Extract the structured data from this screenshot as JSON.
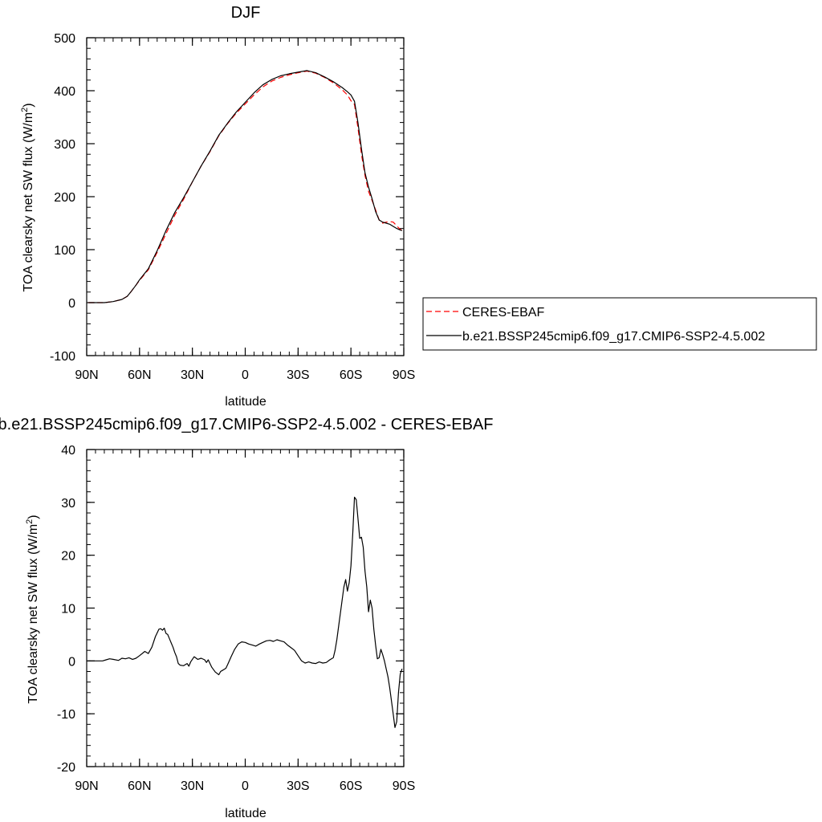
{
  "chart_data": [
    {
      "type": "line",
      "title": "DJF",
      "xlabel": "latitude",
      "ylabel": "TOA clearsky net SW flux (W/m",
      "ylabel_sup": "2",
      "ylabel_tail": ")",
      "xlim": [
        90,
        -90
      ],
      "ylim": [
        -100,
        500
      ],
      "xticks": [
        90,
        60,
        30,
        0,
        -30,
        -60,
        -90
      ],
      "xtick_labels": [
        "90N",
        "60N",
        "30N",
        "0",
        "30S",
        "60S",
        "90S"
      ],
      "yticks": [
        -100,
        0,
        100,
        200,
        300,
        400,
        500
      ],
      "ytick_labels": [
        "-100",
        "0",
        "100",
        "200",
        "300",
        "400",
        "500"
      ],
      "legend": {
        "position": "right",
        "entries": [
          "CERES-EBAF",
          "b.e21.BSSP245cmip6.f09_g17.CMIP6-SSP2-4.5.002"
        ]
      },
      "series": [
        {
          "name": "CERES-EBAF",
          "style": "dashed",
          "color": "#ff0000",
          "x": [
            89,
            85,
            80,
            75,
            70,
            67,
            65,
            62,
            60,
            55,
            50,
            45,
            40,
            35,
            30,
            25,
            20,
            15,
            10,
            5,
            0,
            -5,
            -10,
            -15,
            -20,
            -25,
            -30,
            -35,
            -40,
            -45,
            -50,
            -55,
            -58,
            -60,
            -62,
            -64,
            -66,
            -68,
            -70,
            -72,
            -74,
            -76,
            -78,
            -80,
            -82,
            -84,
            -86,
            -88,
            -89
          ],
          "y": [
            0,
            0,
            0,
            2,
            6,
            12,
            20,
            33,
            42,
            62,
            95,
            130,
            165,
            195,
            228,
            258,
            285,
            315,
            338,
            358,
            375,
            392,
            407,
            418,
            425,
            430,
            434,
            437,
            433,
            425,
            415,
            402,
            392,
            381,
            374,
            330,
            280,
            240,
            210,
            193,
            175,
            156,
            150,
            152,
            153,
            152,
            145,
            138,
            137
          ]
        },
        {
          "name": "b.e21.BSSP245cmip6.f09_g17.CMIP6-SSP2-4.5.002",
          "style": "solid",
          "color": "#000000",
          "x": [
            89,
            85,
            80,
            75,
            70,
            67,
            65,
            62,
            60,
            55,
            50,
            45,
            40,
            35,
            30,
            25,
            20,
            15,
            10,
            5,
            0,
            -5,
            -10,
            -15,
            -20,
            -25,
            -30,
            -35,
            -40,
            -45,
            -50,
            -55,
            -58,
            -60,
            -62,
            -64,
            -66,
            -68,
            -70,
            -72,
            -74,
            -76,
            -78,
            -80,
            -82,
            -84,
            -86,
            -88,
            -89
          ],
          "y": [
            0,
            0,
            0,
            2,
            6,
            12,
            20,
            33,
            43,
            64,
            98,
            136,
            170,
            198,
            228,
            258,
            286,
            316,
            339,
            360,
            378,
            396,
            411,
            421,
            428,
            432,
            435,
            438,
            434,
            426,
            417,
            406,
            398,
            392,
            380,
            340,
            290,
            245,
            218,
            196,
            172,
            156,
            152,
            150,
            148,
            144,
            140,
            137,
            136
          ]
        }
      ]
    },
    {
      "type": "line",
      "title": "b.e21.BSSP245cmip6.f09_g17.CMIP6-SSP2-4.5.002 - CERES-EBAF",
      "xlabel": "latitude",
      "ylabel": "TOA clearsky net SW flux (W/m",
      "ylabel_sup": "2",
      "ylabel_tail": ")",
      "xlim": [
        90,
        -90
      ],
      "ylim": [
        -20,
        40
      ],
      "xticks": [
        90,
        60,
        30,
        0,
        -30,
        -60,
        -90
      ],
      "xtick_labels": [
        "90N",
        "60N",
        "30N",
        "0",
        "30S",
        "60S",
        "90S"
      ],
      "yticks": [
        -20,
        -10,
        0,
        10,
        20,
        30,
        40
      ],
      "ytick_labels": [
        "-20",
        "-10",
        "0",
        "10",
        "20",
        "30",
        "40"
      ],
      "series": [
        {
          "style": "solid",
          "color": "#000000",
          "x": [
            89,
            85,
            81,
            79,
            77,
            75,
            72,
            70,
            68,
            66,
            64,
            62,
            60,
            57,
            55,
            53,
            51,
            49,
            48,
            47,
            46,
            45,
            44,
            43,
            42,
            41,
            40,
            39,
            38,
            37,
            35,
            33,
            32,
            31,
            29,
            27,
            25,
            23,
            22,
            21,
            20,
            19,
            17,
            15,
            14,
            13,
            12,
            11,
            10,
            8,
            6,
            4,
            2,
            0,
            -2,
            -4,
            -6,
            -8,
            -10,
            -12,
            -14,
            -16,
            -18,
            -20,
            -22,
            -24,
            -26,
            -28,
            -30,
            -32,
            -34,
            -36,
            -38,
            -40,
            -42,
            -44,
            -46,
            -48,
            -50,
            -51,
            -52,
            -53,
            -54,
            -55,
            -56,
            -57,
            -58,
            -59,
            -60,
            -61,
            -62,
            -63,
            -64,
            -65,
            -66,
            -67,
            -68,
            -69,
            -70,
            -71,
            -72,
            -73,
            -74,
            -75,
            -76,
            -77,
            -78,
            -79,
            -80,
            -81,
            -82,
            -83,
            -84,
            -85,
            -86,
            -87,
            -88,
            -89
          ],
          "y": [
            0,
            0,
            0,
            0.2,
            0.4,
            0.3,
            0.1,
            0.5,
            0.4,
            0.6,
            0.3,
            0.5,
            1.0,
            1.8,
            1.4,
            2.6,
            4.6,
            6.0,
            6.1,
            5.8,
            6.2,
            5.2,
            5.0,
            4.2,
            3.4,
            2.6,
            1.6,
            0.8,
            -0.5,
            -0.8,
            -0.9,
            -0.5,
            -1.0,
            -0.2,
            0.8,
            0.3,
            0.5,
            0.2,
            -0.3,
            0.2,
            -0.5,
            -1.2,
            -2.1,
            -2.6,
            -2.0,
            -1.8,
            -1.6,
            -1.4,
            -0.7,
            0.8,
            2.2,
            3.2,
            3.6,
            3.5,
            3.2,
            3.0,
            2.8,
            3.2,
            3.5,
            3.8,
            3.9,
            3.7,
            4.0,
            3.8,
            3.6,
            3.0,
            2.5,
            2.0,
            1.0,
            0.0,
            -0.4,
            -0.2,
            -0.4,
            -0.5,
            -0.2,
            -0.4,
            -0.3,
            0.2,
            0.6,
            2.0,
            4.0,
            6.5,
            9.0,
            11.5,
            14.0,
            15.4,
            13.2,
            14.8,
            18.0,
            24.0,
            31.0,
            30.5,
            27.0,
            23.2,
            23.4,
            21.5,
            17.0,
            14.0,
            9.3,
            11.5,
            10.0,
            6.0,
            3.0,
            0.4,
            0.6,
            2.2,
            1.2,
            0.0,
            -1.5,
            -3.0,
            -5.0,
            -7.5,
            -10.0,
            -12.6,
            -11.5,
            -6.0,
            -2.5,
            -1.5
          ]
        }
      ]
    }
  ]
}
